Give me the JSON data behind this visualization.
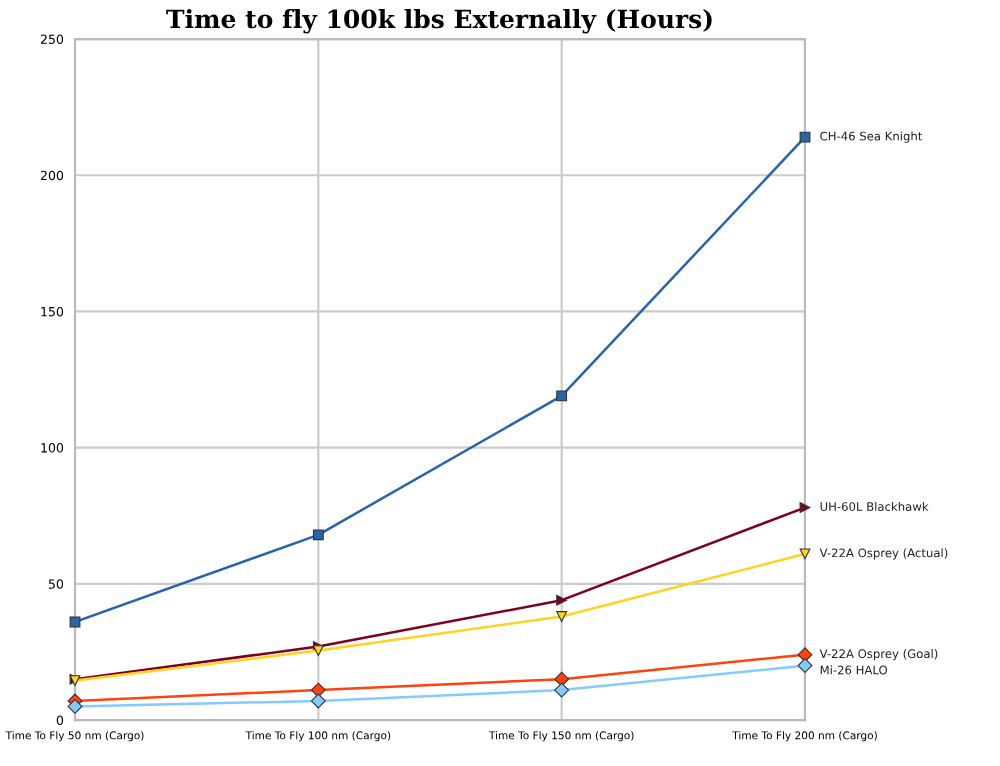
{
  "chart_data": {
    "type": "line",
    "title": "Time to fly 100k lbs Externally (Hours)",
    "categories": [
      "Time To Fly 50 nm (Cargo)",
      "Time To Fly 100 nm (Cargo)",
      "Time To Fly 150 nm (Cargo)",
      "Time To Fly 200 nm (Cargo)"
    ],
    "series": [
      {
        "name": "CH-46 Sea Knight",
        "color": "#2a64a8",
        "marker": "square",
        "values": [
          36,
          68,
          119,
          214
        ]
      },
      {
        "name": "UH-60L Blackhawk",
        "color": "#7e0021",
        "marker": "triangle",
        "values": [
          15,
          27,
          44,
          78
        ]
      },
      {
        "name": "V-22A Osprey (Actual)",
        "color": "#ffd320",
        "marker": "triangle",
        "values": [
          14.5,
          25.5,
          38,
          61
        ]
      },
      {
        "name": "V-22A Osprey (Goal)",
        "color": "#ff420e",
        "marker": "diamond",
        "values": [
          7,
          11,
          15,
          24
        ]
      },
      {
        "name": "Mi-26 HALO",
        "color": "#83caff",
        "marker": "diamond",
        "values": [
          5,
          7,
          11,
          20
        ]
      }
    ],
    "ylim": [
      0,
      250
    ],
    "yticks": [
      0,
      50,
      100,
      150,
      200,
      250
    ],
    "grid": true,
    "line_style": "solid"
  }
}
